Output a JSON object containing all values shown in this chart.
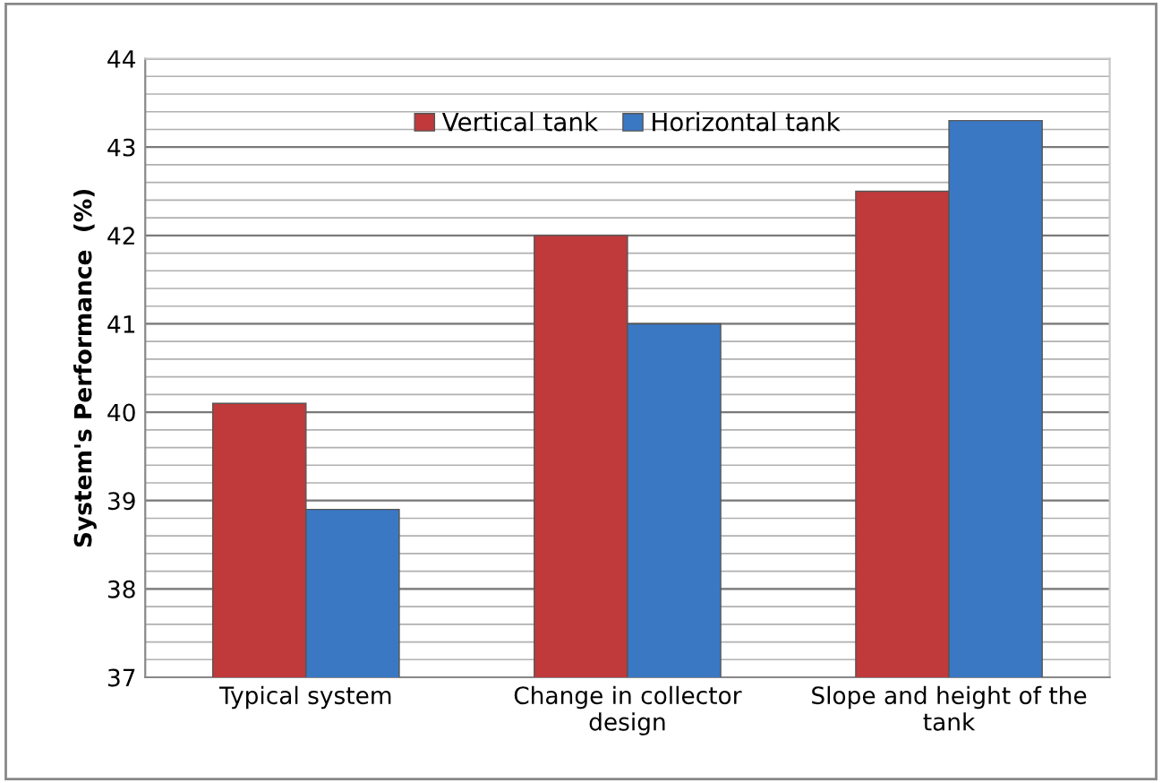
{
  "chart_data": {
    "type": "bar",
    "ylabel": "System's Performance  (%)",
    "categories": [
      "Typical system",
      "Change in collector design",
      "Slope and height of the tank"
    ],
    "series": [
      {
        "name": "Vertical tank",
        "color": "#c0393b",
        "values": [
          40.1,
          42.0,
          42.5
        ]
      },
      {
        "name": "Horizontal tank",
        "color": "#3a78c4",
        "values": [
          38.9,
          41.0,
          43.3
        ]
      }
    ],
    "ylim": [
      37,
      44
    ],
    "yticks": [
      37,
      {
        "value": 37.2,
        "label": null
      },
      {
        "value": 37.4,
        "label": null
      },
      {
        "value": 37.6,
        "label": null
      },
      {
        "value": 37.8,
        "label": null
      },
      38,
      {
        "value": 38.2,
        "label": null
      },
      {
        "value": 38.4,
        "label": null
      },
      {
        "value": 38.6,
        "label": null
      },
      {
        "value": 38.8,
        "label": null
      },
      39,
      {
        "value": 39.2,
        "label": null
      },
      {
        "value": 39.4,
        "label": null
      },
      {
        "value": 39.6,
        "label": null
      },
      {
        "value": 39.8,
        "label": null
      },
      40,
      {
        "value": 40.2,
        "label": null
      },
      {
        "value": 40.4,
        "label": null
      },
      {
        "value": 40.6,
        "label": null
      },
      {
        "value": 40.8,
        "label": null
      },
      41,
      {
        "value": 41.2,
        "label": null
      },
      {
        "value": 41.4,
        "label": null
      },
      {
        "value": 41.6,
        "label": null
      },
      {
        "value": 41.8,
        "label": null
      },
      42,
      {
        "value": 42.2,
        "label": null
      },
      {
        "value": 42.4,
        "label": null
      },
      {
        "value": 42.6,
        "label": null
      },
      {
        "value": 42.8,
        "label": null
      },
      43,
      {
        "value": 43.2,
        "label": null
      },
      {
        "value": 43.4,
        "label": null
      },
      {
        "value": 43.6,
        "label": null
      },
      {
        "value": 43.8,
        "label": null
      },
      44
    ],
    "grid": "y",
    "legend": "top"
  }
}
